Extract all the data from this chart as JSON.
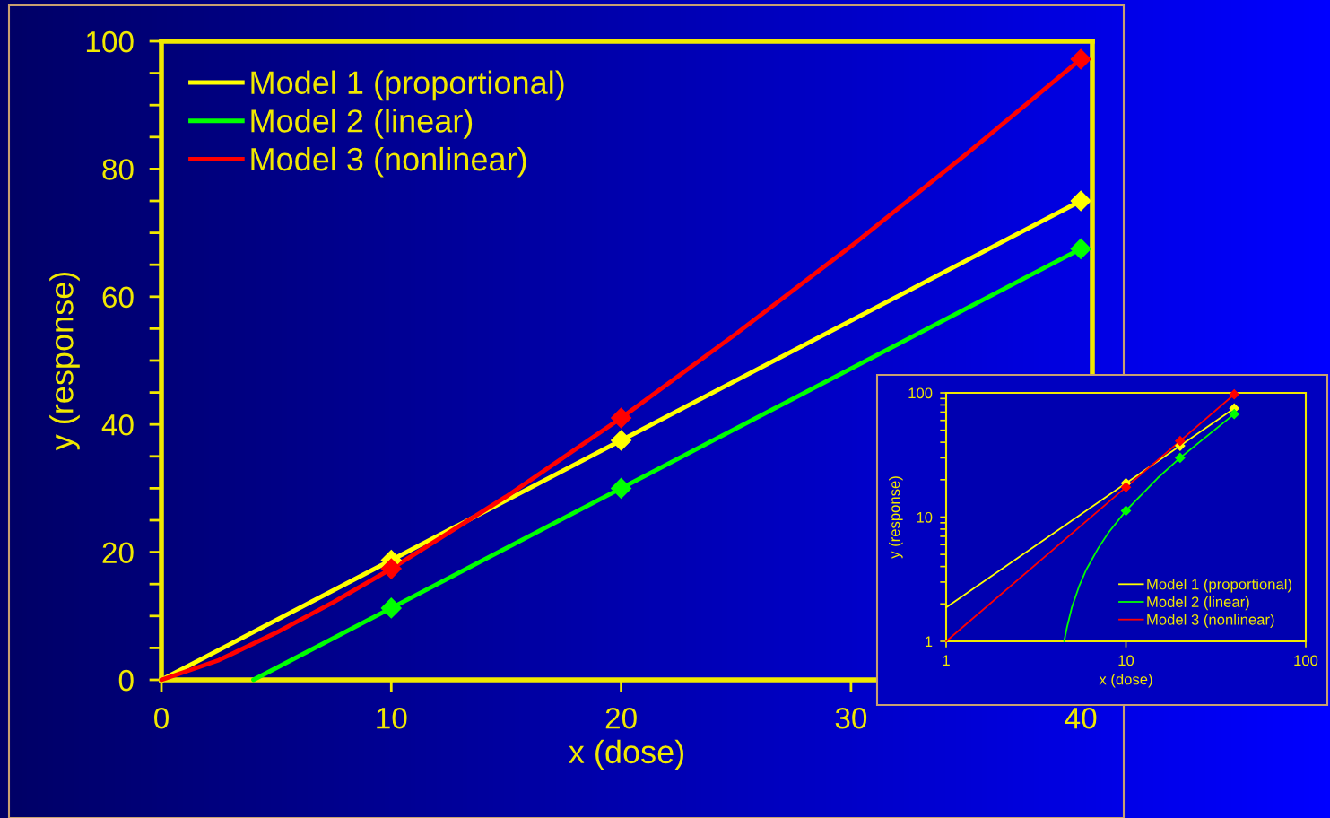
{
  "chart_data": [
    {
      "type": "line",
      "xlabel": "x (dose)",
      "ylabel": "y (response)",
      "xlim": [
        0,
        40.5
      ],
      "ylim": [
        0,
        100
      ],
      "xticks": [
        0,
        10,
        20,
        30,
        40
      ],
      "yticks": [
        0,
        {
          "value": 5,
          "label": null
        },
        {
          "value": 10,
          "label": null
        },
        {
          "value": 15,
          "label": null
        },
        20,
        {
          "value": 25,
          "label": null
        },
        {
          "value": 30,
          "label": null
        },
        {
          "value": 35,
          "label": null
        },
        40,
        {
          "value": 45,
          "label": null
        },
        {
          "value": 50,
          "label": null
        },
        {
          "value": 55,
          "label": null
        },
        60,
        {
          "value": 65,
          "label": null
        },
        {
          "value": 70,
          "label": null
        },
        {
          "value": 75,
          "label": null
        },
        80,
        {
          "value": 85,
          "label": null
        },
        {
          "value": 90,
          "label": null
        },
        {
          "value": 95,
          "label": null
        },
        100
      ],
      "grid": false,
      "legend": "top left",
      "line_style": "solid",
      "series": [
        {
          "name": "Model 1 (proportional)",
          "color": "#ffff00",
          "marker": "none",
          "x": [
            0,
            10,
            20,
            40
          ],
          "values": [
            0,
            18.75,
            37.5,
            75
          ]
        },
        {
          "name": "Model 2 (linear)",
          "color": "#00ff00",
          "marker": "none",
          "x": [
            4,
            10,
            20,
            40
          ],
          "values": [
            0,
            11.25,
            30,
            67.5
          ]
        },
        {
          "name": "Model 3 (nonlinear)",
          "color": "#ff0000",
          "marker": "none",
          "x": [
            0,
            2.5,
            5,
            7.5,
            10,
            15,
            20,
            25,
            30,
            35,
            40
          ],
          "values": [
            0,
            3.1,
            7.4,
            12.2,
            17.4,
            28.7,
            41.0,
            54.2,
            67.9,
            82.3,
            97.2
          ]
        },
        {
          "type": "scatter",
          "color": "#ffff00",
          "marker": "diamond",
          "x": [
            10,
            20,
            40
          ],
          "values": [
            18.75,
            37.5,
            75
          ]
        },
        {
          "type": "scatter",
          "color": "#00ff00",
          "marker": "diamond",
          "x": [
            10,
            20,
            40
          ],
          "values": [
            11.25,
            30,
            67.5
          ]
        },
        {
          "type": "scatter",
          "color": "#ff0000",
          "marker": "diamond",
          "x": [
            10,
            20,
            40
          ],
          "values": [
            17.4,
            41.0,
            97.2
          ]
        }
      ]
    },
    {
      "type": "line",
      "xlabel": "x (dose)",
      "ylabel": "y (response)",
      "log": "xy",
      "xlim": [
        1,
        100
      ],
      "ylim": [
        1,
        100
      ],
      "xticks": [
        1,
        10,
        100
      ],
      "yticks": [
        1,
        {
          "value": 2,
          "label": null
        },
        {
          "value": 3,
          "label": null
        },
        {
          "value": 4,
          "label": null
        },
        {
          "value": 5,
          "label": null
        },
        {
          "value": 6,
          "label": null
        },
        {
          "value": 7,
          "label": null
        },
        {
          "value": 8,
          "label": null
        },
        {
          "value": 9,
          "label": null
        },
        10,
        {
          "value": 20,
          "label": null
        },
        {
          "value": 30,
          "label": null
        },
        {
          "value": 40,
          "label": null
        },
        {
          "value": 50,
          "label": null
        },
        {
          "value": 60,
          "label": null
        },
        {
          "value": 70,
          "label": null
        },
        {
          "value": 80,
          "label": null
        },
        {
          "value": 90,
          "label": null
        },
        100
      ],
      "grid": false,
      "legend": "bottom right",
      "line_style": "solid",
      "series": [
        {
          "name": "Model 1 (proportional)",
          "color": "#ffff00",
          "marker": "none",
          "x": [
            1,
            10,
            20,
            40
          ],
          "values": [
            1.875,
            18.75,
            37.5,
            75
          ]
        },
        {
          "name": "Model 2 (linear)",
          "color": "#00ff00",
          "marker": "none",
          "x": [
            4.53,
            4.7,
            5,
            5.5,
            6,
            7,
            8,
            10,
            15,
            20,
            40
          ],
          "values": [
            1,
            1.3,
            1.875,
            2.8,
            3.75,
            5.6,
            7.5,
            11.25,
            20.6,
            30,
            67.5
          ]
        },
        {
          "name": "Model 3 (nonlinear)",
          "color": "#ff0000",
          "marker": "none",
          "x": [
            1,
            10,
            20,
            40
          ],
          "values": [
            1,
            17.4,
            41.0,
            97.2
          ]
        },
        {
          "type": "scatter",
          "color": "#ffff00",
          "marker": "diamond",
          "x": [
            10,
            20,
            40
          ],
          "values": [
            18.75,
            37.5,
            75
          ]
        },
        {
          "type": "scatter",
          "color": "#00ff00",
          "marker": "diamond",
          "x": [
            10,
            20,
            40
          ],
          "values": [
            11.25,
            30,
            67.5
          ]
        },
        {
          "type": "scatter",
          "color": "#ff0000",
          "marker": "diamond",
          "x": [
            10,
            20,
            40
          ],
          "values": [
            17.4,
            41.0,
            97.2
          ]
        }
      ]
    }
  ]
}
